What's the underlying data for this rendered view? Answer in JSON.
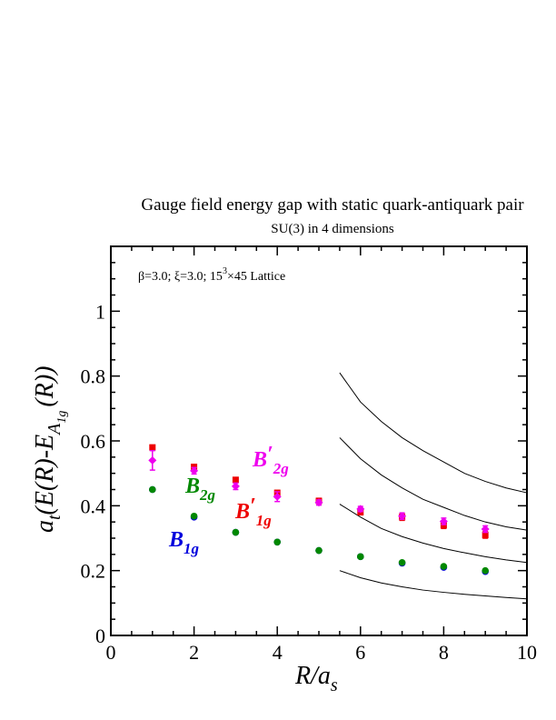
{
  "chart_data": {
    "type": "scatter",
    "title": "Gauge field energy gap with static quark-antiquark pair",
    "subtitle": "SU(3) in 4 dimensions",
    "annotation": {
      "pre": "β=3.0;  ξ=3.0; 15",
      "sup": "3",
      "post": "×45 Lattice"
    },
    "xlabel": {
      "main": "R/a",
      "sub": "s"
    },
    "ylabel": {
      "a": "a",
      "t": "t",
      "mid": "(E(R)-E",
      "A": "A",
      "sub1g": "1g",
      "tail": "(R))"
    },
    "xlim": [
      0,
      10
    ],
    "ylim": [
      0,
      1.2
    ],
    "x_ticks": [
      "0",
      "2",
      "4",
      "6",
      "8",
      "10"
    ],
    "y_ticks": [
      "0",
      "0.2",
      "0.4",
      "0.6",
      "0.8",
      "1"
    ],
    "grid": false,
    "series": [
      {
        "name": "B1g",
        "label_main": "B",
        "label_sub": "1g",
        "label_prime": "",
        "color": "#0000dd",
        "marker": "circle",
        "x": [
          1,
          2,
          3,
          4,
          5,
          6,
          7,
          8,
          9
        ],
        "y": [
          0.45,
          0.365,
          0.318,
          0.288,
          0.262,
          0.243,
          0.223,
          0.21,
          0.197
        ]
      },
      {
        "name": "B2g",
        "label_main": "B",
        "label_sub": "2g",
        "label_prime": "",
        "color": "#008800",
        "marker": "circle",
        "x": [
          1,
          2,
          3,
          4,
          5,
          6,
          7,
          8,
          9
        ],
        "y": [
          0.45,
          0.368,
          0.318,
          0.288,
          0.262,
          0.243,
          0.225,
          0.213,
          0.2
        ]
      },
      {
        "name": "B'1g",
        "label_main": "B",
        "label_sub": "1g",
        "label_prime": "′",
        "color": "#ee0000",
        "marker": "square",
        "x": [
          1,
          2,
          3,
          4,
          5,
          6,
          7,
          8,
          9
        ],
        "y": [
          0.58,
          0.52,
          0.48,
          0.44,
          0.415,
          0.38,
          0.365,
          0.34,
          0.31
        ],
        "err": [
          0.006,
          0.006,
          0.006,
          0.007,
          0.008,
          0.008,
          0.01,
          0.01,
          0.01
        ]
      },
      {
        "name": "B'2g",
        "label_main": "B",
        "label_sub": "2g",
        "label_prime": "′",
        "color": "#ee00ee",
        "marker": "diamond",
        "x": [
          1,
          2,
          3,
          4,
          5,
          6,
          7,
          8,
          9
        ],
        "y": [
          0.54,
          0.508,
          0.46,
          0.428,
          0.41,
          0.39,
          0.368,
          0.352,
          0.328
        ],
        "err": [
          0.03,
          0.01,
          0.01,
          0.015,
          0.008,
          0.008,
          0.01,
          0.01,
          0.01
        ]
      }
    ],
    "curves": [
      {
        "x": [
          5.5,
          6,
          6.5,
          7,
          7.5,
          8,
          8.5,
          9,
          9.5,
          10
        ],
        "y": [
          0.81,
          0.72,
          0.66,
          0.61,
          0.57,
          0.535,
          0.5,
          0.475,
          0.455,
          0.44
        ]
      },
      {
        "x": [
          5.5,
          6,
          6.5,
          7,
          7.5,
          8,
          8.5,
          9,
          9.5,
          10
        ],
        "y": [
          0.61,
          0.545,
          0.495,
          0.455,
          0.42,
          0.395,
          0.37,
          0.35,
          0.335,
          0.325
        ]
      },
      {
        "x": [
          5.5,
          6,
          6.5,
          7,
          7.5,
          8,
          8.5,
          9,
          9.5,
          10
        ],
        "y": [
          0.405,
          0.365,
          0.33,
          0.305,
          0.285,
          0.268,
          0.255,
          0.243,
          0.233,
          0.225
        ]
      },
      {
        "x": [
          5.5,
          6,
          6.5,
          7,
          7.5,
          8,
          8.5,
          9,
          9.5,
          10
        ],
        "y": [
          0.2,
          0.178,
          0.162,
          0.15,
          0.14,
          0.133,
          0.127,
          0.122,
          0.117,
          0.113
        ]
      }
    ]
  }
}
